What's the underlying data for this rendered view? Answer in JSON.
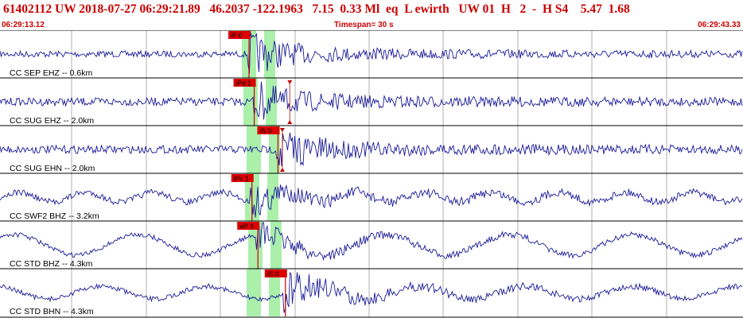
{
  "header": {
    "title": "61402112 UW 2018-07-27 06:29:21.89   46.2037 -122.1963   7.15  0.33 Ml  eq  L ewirth   UW 01  H   2  -  H S4    5.47  1.68",
    "time_start": "06:29:13.12",
    "timespan": "Timespan=  30 s",
    "time_end": "06:29:43.33"
  },
  "colors": {
    "header_text": "#cc0000",
    "trace": "#1a1a99",
    "pick_box": "#dd0000",
    "pick_line": "#cc0000",
    "highlight": "#aaf0aa",
    "grid": "#b0b0b0",
    "separator": "#000000"
  },
  "traces": [
    {
      "label": "CC SEP EHZ -- 0.6km",
      "pick": "iP 0",
      "pick_type": "box",
      "style": "high",
      "noise": 4,
      "burst": 22,
      "onset": 0.333,
      "lf": 0,
      "lf_cycles": 0,
      "second_onset": 0.365
    },
    {
      "label": "CC SUG EHZ -- 2.0km",
      "pick": "iPd 1",
      "pick_type": "box",
      "style": "high",
      "noise": 5,
      "burst": 20,
      "onset": 0.34,
      "lf": 0,
      "lf_cycles": 0,
      "second_onset": 0.39,
      "marker": true
    },
    {
      "label": "CC SUG EHN -- 2.0km",
      "pick": "iS 0",
      "pick_type": "box",
      "style": "high",
      "noise": 5,
      "burst": 22,
      "onset": 0.372,
      "lf": 0,
      "lf_cycles": 0,
      "second_onset": 0.38,
      "marker": true
    },
    {
      "label": "CC SWF2 BHZ -- 3.2km",
      "pick": "iPc 1",
      "pick_type": "box",
      "style": "low",
      "noise": 4,
      "burst": 16,
      "onset": 0.337,
      "lf": 6,
      "lf_cycles": 11,
      "second_onset": 0.38
    },
    {
      "label": "CC STD BHZ -- 4.3km",
      "pick": "eP 3",
      "pick_type": "box",
      "style": "low",
      "noise": 3,
      "burst": 14,
      "onset": 0.345,
      "lf": 13,
      "lf_cycles": 6,
      "second_onset": 0.385
    },
    {
      "label": "CC STD BHN -- 4.3km",
      "pick": "iS 0",
      "pick_type": "box",
      "style": "low",
      "noise": 3,
      "burst": 20,
      "onset": 0.382,
      "lf": 8,
      "lf_cycles": 7,
      "second_onset": 0.385
    }
  ]
}
